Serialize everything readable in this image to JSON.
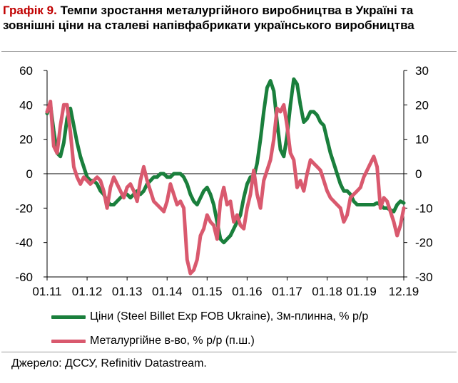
{
  "header": {
    "label": "Графік 9.",
    "text": "Темпи зростання металургійного виробництва в Україні та зовнішні ціни на сталеві напівфабрикати українського виробництва"
  },
  "source": "Джерело: ДССУ, Refinitiv Datastream.",
  "chart_data": {
    "type": "line",
    "title": "Графік 9. Темпи зростання металургійного виробництва в Україні та зовнішні ціни на сталеві напівфабрикати українського виробництва",
    "x_tick_labels": [
      "01.11",
      "01.12",
      "01.13",
      "01.14",
      "01.15",
      "01.16",
      "01.17",
      "01.18",
      "01.19",
      "12.19"
    ],
    "x_range_months": [
      0,
      107
    ],
    "y_left": {
      "min": -60,
      "max": 60,
      "ticks": [
        60,
        40,
        20,
        0,
        -20,
        -40,
        -60
      ]
    },
    "y_right": {
      "min": -30,
      "max": 30,
      "ticks": [
        30,
        20,
        10,
        0,
        -10,
        -20,
        -30
      ]
    },
    "series": [
      {
        "name": "Ціни (Steel Billet Exp FOB Ukraine), 3м-плинна, % р/р",
        "axis": "left",
        "color": "#1a7f3c",
        "x": [
          0,
          1,
          2,
          3,
          4,
          5,
          6,
          7,
          8,
          9,
          10,
          11,
          12,
          13,
          14,
          15,
          16,
          17,
          18,
          19,
          20,
          21,
          22,
          23,
          24,
          25,
          26,
          27,
          28,
          29,
          30,
          31,
          32,
          33,
          34,
          35,
          36,
          37,
          38,
          39,
          40,
          41,
          42,
          43,
          44,
          45,
          46,
          47,
          48,
          49,
          50,
          51,
          52,
          53,
          54,
          55,
          56,
          57,
          58,
          59,
          60,
          61,
          62,
          63,
          64,
          65,
          66,
          67,
          68,
          69,
          70,
          71,
          72,
          73,
          74,
          75,
          76,
          77,
          78,
          79,
          80,
          81,
          82,
          83,
          84,
          85,
          86,
          87,
          88,
          89,
          90,
          91,
          92,
          93,
          94,
          95,
          96,
          97,
          98,
          99,
          100,
          101,
          102,
          103,
          104,
          105,
          106,
          107
        ],
        "values": [
          35,
          40,
          25,
          12,
          10,
          18,
          32,
          38,
          28,
          18,
          10,
          4,
          -2,
          -4,
          -4,
          -6,
          -10,
          -12,
          -16,
          -18,
          -18,
          -16,
          -14,
          -12,
          -12,
          -14,
          -12,
          -10,
          -12,
          -10,
          -6,
          -4,
          -2,
          -2,
          0,
          0,
          -2,
          -2,
          0,
          0,
          0,
          -2,
          -6,
          -12,
          -16,
          -18,
          -14,
          -10,
          -8,
          -12,
          -18,
          -28,
          -38,
          -40,
          -38,
          -36,
          -32,
          -28,
          -24,
          -14,
          -6,
          -2,
          -2,
          6,
          20,
          36,
          50,
          54,
          48,
          30,
          14,
          10,
          22,
          40,
          55,
          52,
          40,
          30,
          32,
          36,
          36,
          34,
          30,
          28,
          20,
          12,
          6,
          0,
          -6,
          -10,
          -10,
          -12,
          -16,
          -18,
          -18,
          -18,
          -18,
          -18,
          -18,
          -17,
          -18,
          -20,
          -20,
          -21,
          -22,
          -18,
          -16,
          -17
        ]
      },
      {
        "name": "Металургійне в-во, % р/р (п.ш.)",
        "axis": "right",
        "color": "#d9596e",
        "x": [
          0,
          1,
          2,
          3,
          4,
          5,
          6,
          7,
          8,
          9,
          10,
          11,
          12,
          13,
          14,
          15,
          16,
          17,
          18,
          19,
          20,
          21,
          22,
          23,
          24,
          25,
          26,
          27,
          28,
          29,
          30,
          31,
          32,
          33,
          34,
          35,
          36,
          37,
          38,
          39,
          40,
          41,
          42,
          43,
          44,
          45,
          46,
          47,
          48,
          49,
          50,
          51,
          52,
          53,
          54,
          55,
          56,
          57,
          58,
          59,
          60,
          61,
          62,
          63,
          64,
          65,
          66,
          67,
          68,
          69,
          70,
          71,
          72,
          73,
          74,
          75,
          76,
          77,
          78,
          79,
          80,
          81,
          82,
          83,
          84,
          85,
          86,
          87,
          88,
          89,
          90,
          91,
          92,
          93,
          94,
          95,
          96,
          97,
          98,
          99,
          100,
          101,
          102,
          103,
          104,
          105,
          106,
          107
        ],
        "values": [
          18,
          21,
          8,
          6,
          14,
          20,
          20,
          12,
          2,
          -1,
          -3,
          -1,
          -2,
          -3,
          -2,
          -1,
          -2,
          -5,
          -10,
          -4,
          -1,
          -3,
          -5,
          -7,
          -4,
          -3,
          -5,
          -8,
          -2,
          2,
          -2,
          -5,
          -8,
          -9,
          -10,
          -11,
          -8,
          -3,
          -6,
          -9,
          -8,
          -10,
          -25,
          -29,
          -28,
          -25,
          -18,
          -16,
          -12,
          -14,
          -15,
          -19,
          -8,
          -4,
          -9,
          -8,
          -14,
          -12,
          -15,
          -16,
          -10,
          -6,
          1,
          -6,
          -10,
          -2,
          1,
          4,
          10,
          19,
          18,
          20,
          14,
          6,
          4,
          -4,
          -2,
          -5,
          0,
          4,
          3,
          2,
          1,
          -2,
          -5,
          -7,
          -8,
          -9,
          -10,
          -14,
          -12,
          -7,
          -6,
          -5,
          -4,
          -1,
          1,
          3,
          5,
          2,
          -10,
          -7,
          -8,
          -11,
          -14,
          -18,
          -15,
          -10
        ]
      }
    ],
    "legend_position": "bottom",
    "grid": false
  }
}
